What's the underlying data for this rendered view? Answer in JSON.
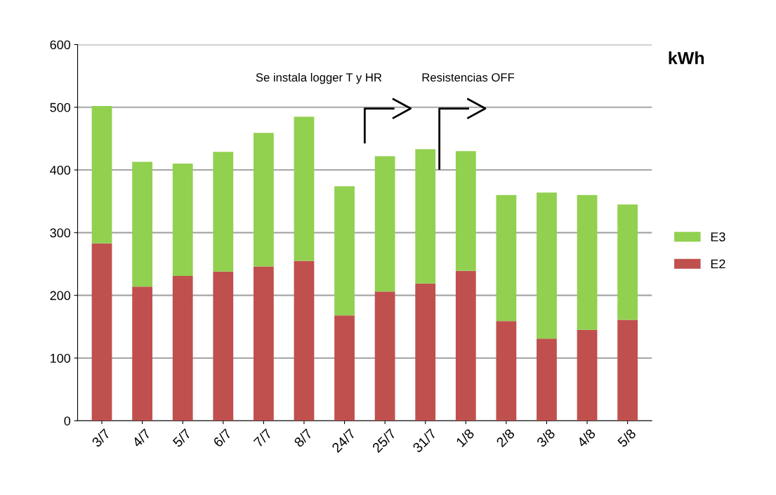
{
  "chart_data": {
    "type": "bar",
    "stacked": true,
    "categories": [
      "3/7",
      "4/7",
      "5/7",
      "6/7",
      "7/7",
      "8/7",
      "24/7",
      "25/7",
      "31/7",
      "1/8",
      "2/8",
      "3/8",
      "4/8",
      "5/8"
    ],
    "series": [
      {
        "name": "E2",
        "color": "#c0504d",
        "values": [
          283,
          214,
          231,
          238,
          246,
          255,
          168,
          206,
          219,
          239,
          159,
          131,
          145,
          161
        ]
      },
      {
        "name": "E3",
        "color": "#92d050",
        "values": [
          219,
          199,
          179,
          191,
          213,
          230,
          206,
          216,
          214,
          191,
          201,
          233,
          215,
          184
        ]
      }
    ],
    "ylim": [
      0,
      600
    ],
    "yticks": [
      0,
      100,
      200,
      300,
      400,
      500,
      600
    ],
    "grid": "y",
    "legend": "right",
    "annotations": [
      "Se instala logger T y HR",
      "Resistencias OFF",
      "kWh"
    ]
  }
}
